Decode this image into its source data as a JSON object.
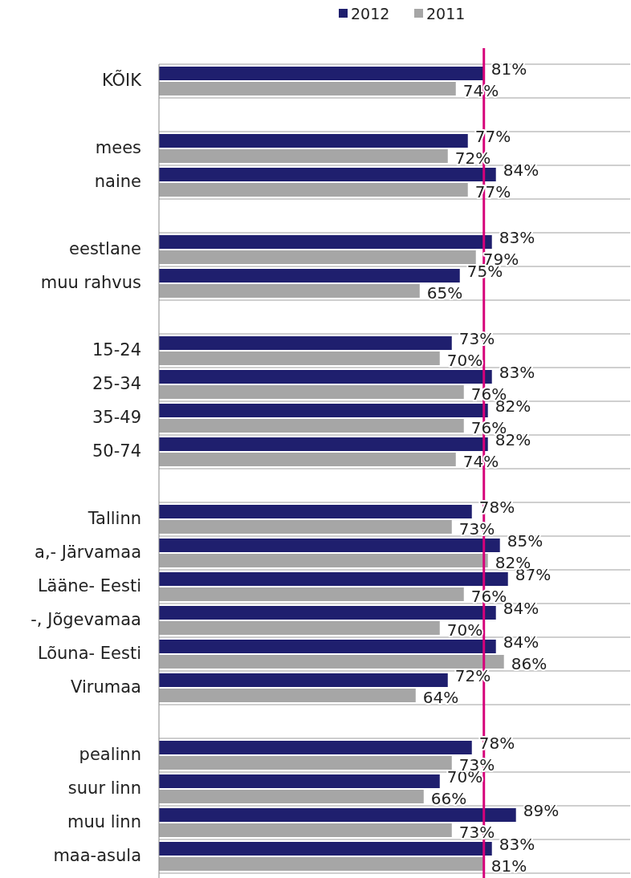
{
  "chart_data": {
    "type": "bar",
    "orientation": "horizontal",
    "categories": [
      "KÕIK",
      null,
      "mees",
      "naine",
      null,
      "eestlane",
      "muu rahvus",
      null,
      "15-24",
      "25-34",
      "35-49",
      "50-74",
      null,
      "Tallinn",
      "a,- Järvamaa",
      "Lääne- Eesti",
      "-, Jõgevamaa",
      "Lõuna- Eesti",
      "Virumaa",
      null,
      "pealinn",
      "suur linn",
      "muu linn",
      "maa-asula"
    ],
    "series": [
      {
        "name": "2012",
        "color": "#1f1f6e",
        "values": [
          81,
          null,
          77,
          84,
          null,
          83,
          75,
          null,
          73,
          83,
          82,
          82,
          null,
          78,
          85,
          87,
          84,
          84,
          72,
          null,
          78,
          70,
          89,
          83
        ],
        "value_labels": [
          "81%",
          null,
          "77%",
          "84%",
          null,
          "83%",
          "75%",
          null,
          "73%",
          "83%",
          "82%",
          "82%",
          null,
          "78%",
          "85%",
          "87%",
          "84%",
          "84%",
          "72%",
          null,
          "78%",
          "70%",
          "89%",
          "83%"
        ]
      },
      {
        "name": "2011",
        "color": "#a6a6a6",
        "values": [
          74,
          null,
          72,
          77,
          null,
          79,
          65,
          null,
          70,
          76,
          76,
          74,
          null,
          73,
          82,
          76,
          70,
          86,
          64,
          null,
          73,
          66,
          73,
          81
        ],
        "value_labels": [
          "74%",
          null,
          "72%",
          "77%",
          null,
          "79%",
          "65%",
          null,
          "70%",
          "76%",
          "76%",
          "74%",
          null,
          "73%",
          "82%",
          "76%",
          "70%",
          "86%",
          "64%",
          null,
          "73%",
          "66%",
          "73%",
          "81%"
        ]
      }
    ],
    "ref_lines": [
      {
        "axis": "x",
        "value": 81,
        "color": "#d6007a"
      }
    ],
    "grid": "y",
    "legend": "top"
  }
}
